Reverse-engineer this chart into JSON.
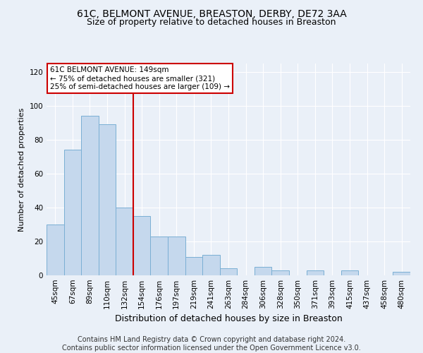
{
  "title1": "61C, BELMONT AVENUE, BREASTON, DERBY, DE72 3AA",
  "title2": "Size of property relative to detached houses in Breaston",
  "xlabel": "Distribution of detached houses by size in Breaston",
  "ylabel": "Number of detached properties",
  "footer1": "Contains HM Land Registry data © Crown copyright and database right 2024.",
  "footer2": "Contains public sector information licensed under the Open Government Licence v3.0.",
  "bin_labels": [
    "45sqm",
    "67sqm",
    "89sqm",
    "110sqm",
    "132sqm",
    "154sqm",
    "176sqm",
    "197sqm",
    "219sqm",
    "241sqm",
    "263sqm",
    "284sqm",
    "306sqm",
    "328sqm",
    "350sqm",
    "371sqm",
    "393sqm",
    "415sqm",
    "437sqm",
    "458sqm",
    "480sqm"
  ],
  "bar_heights": [
    30,
    74,
    94,
    89,
    40,
    35,
    23,
    23,
    11,
    12,
    4,
    0,
    5,
    3,
    0,
    3,
    0,
    3,
    0,
    0,
    2
  ],
  "bar_color": "#c5d8ed",
  "bar_edge_color": "#7aafd4",
  "vline_x": 5,
  "vline_color": "#cc0000",
  "annotation_text": "61C BELMONT AVENUE: 149sqm\n← 75% of detached houses are smaller (321)\n25% of semi-detached houses are larger (109) →",
  "annotation_box_color": "#ffffff",
  "annotation_box_edgecolor": "#cc0000",
  "ylim": [
    0,
    125
  ],
  "yticks": [
    0,
    20,
    40,
    60,
    80,
    100,
    120
  ],
  "background_color": "#eaf0f8",
  "plot_bg_color": "#eaf0f8",
  "grid_color": "#ffffff",
  "title1_fontsize": 10,
  "title2_fontsize": 9,
  "xlabel_fontsize": 9,
  "ylabel_fontsize": 8,
  "tick_fontsize": 7.5,
  "footer_fontsize": 7
}
